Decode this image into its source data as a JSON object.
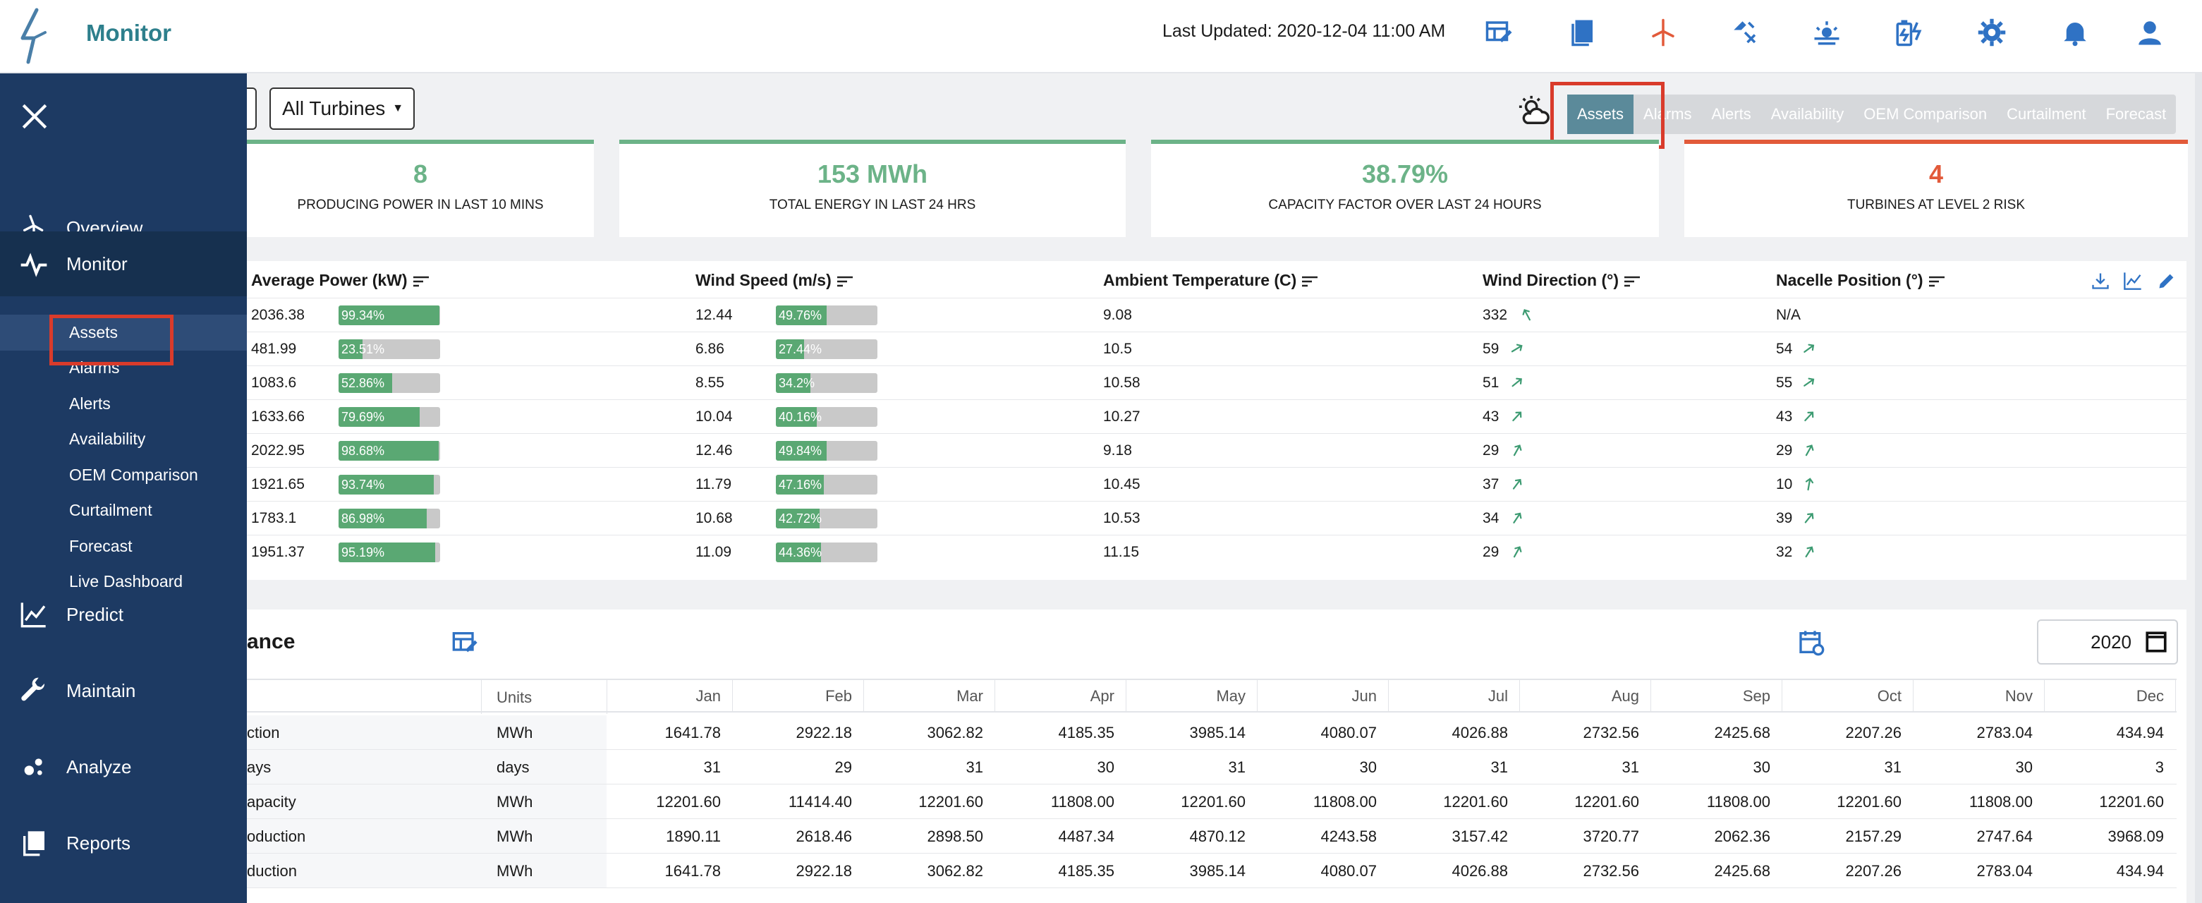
{
  "header": {
    "app_title": "Monitor",
    "last_updated": "Last Updated: 2020-12-04 11:00 AM",
    "icons": [
      "table-edit-icon",
      "book-icon",
      "wind-turbine-icon",
      "weather-warning-icon",
      "sun-haze-icon",
      "battery-charge-icon",
      "gear-icon",
      "bell-icon",
      "user-icon"
    ]
  },
  "sidebar": {
    "main": [
      {
        "label": "Overview",
        "icon": "turbine-outline-icon"
      },
      {
        "label": "Monitor",
        "icon": "pulse-icon"
      },
      {
        "label": "Predict",
        "icon": "line-chart-icon"
      },
      {
        "label": "Maintain",
        "icon": "wrench-icon"
      },
      {
        "label": "Analyze",
        "icon": "scatter-icon"
      },
      {
        "label": "Reports",
        "icon": "copy-icon"
      }
    ],
    "sub": [
      "Assets",
      "Alarms",
      "Alerts",
      "Availability",
      "OEM Comparison",
      "Curtailment",
      "Forecast",
      "Live Dashboard"
    ],
    "active_sub": "Assets"
  },
  "filters": {
    "turbines": "All Turbines"
  },
  "tabs": [
    "Assets",
    "Alarms",
    "Alerts",
    "Availability",
    "OEM Comparison",
    "Curtailment",
    "Forecast"
  ],
  "active_tab": "Assets",
  "kpis": [
    {
      "value": "8",
      "label": "PRODUCING POWER IN LAST 10 MINS",
      "color": "#6cb388"
    },
    {
      "value": "153 MWh",
      "label": "TOTAL ENERGY IN LAST 24 HRS",
      "color": "#6cb388"
    },
    {
      "value": "38.79%",
      "label": "CAPACITY FACTOR OVER LAST 24 HOURS",
      "color": "#6cb388"
    },
    {
      "value": "4",
      "label": "TURBINES AT LEVEL 2 RISK",
      "color": "#e25a3a"
    }
  ],
  "assets_table": {
    "headers": [
      "Average Power (kW)",
      "Wind Speed (m/s)",
      "Ambient Temperature (C)",
      "Wind Direction (°)",
      "Nacelle Position (°)"
    ],
    "rows": [
      {
        "power": "2036.38",
        "power_pct": "99.34%",
        "power_frac": 0.9934,
        "wind": "12.44",
        "wind_pct": "49.76%",
        "wind_frac": 0.4976,
        "temp": "9.08",
        "dir": "332",
        "nacelle": "N/A"
      },
      {
        "power": "481.99",
        "power_pct": "23.51%",
        "power_frac": 0.2351,
        "wind": "6.86",
        "wind_pct": "27.44%",
        "wind_frac": 0.2744,
        "temp": "10.5",
        "dir": "59",
        "nacelle": "54"
      },
      {
        "power": "1083.6",
        "power_pct": "52.86%",
        "power_frac": 0.5286,
        "wind": "8.55",
        "wind_pct": "34.2%",
        "wind_frac": 0.342,
        "temp": "10.58",
        "dir": "51",
        "nacelle": "55"
      },
      {
        "power": "1633.66",
        "power_pct": "79.69%",
        "power_frac": 0.7969,
        "wind": "10.04",
        "wind_pct": "40.16%",
        "wind_frac": 0.4016,
        "temp": "10.27",
        "dir": "43",
        "nacelle": "43"
      },
      {
        "power": "2022.95",
        "power_pct": "98.68%",
        "power_frac": 0.9868,
        "wind": "12.46",
        "wind_pct": "49.84%",
        "wind_frac": 0.4984,
        "temp": "9.18",
        "dir": "29",
        "nacelle": "29"
      },
      {
        "power": "1921.65",
        "power_pct": "93.74%",
        "power_frac": 0.9374,
        "wind": "11.79",
        "wind_pct": "47.16%",
        "wind_frac": 0.4716,
        "temp": "10.45",
        "dir": "37",
        "nacelle": "10"
      },
      {
        "power": "1783.1",
        "power_pct": "86.98%",
        "power_frac": 0.8698,
        "wind": "10.68",
        "wind_pct": "42.72%",
        "wind_frac": 0.4272,
        "temp": "10.53",
        "dir": "34",
        "nacelle": "39"
      },
      {
        "power": "1951.37",
        "power_pct": "95.19%",
        "power_frac": 0.9519,
        "wind": "11.09",
        "wind_pct": "44.36%",
        "wind_frac": 0.4436,
        "temp": "11.15",
        "dir": "29",
        "nacelle": "32"
      }
    ]
  },
  "performance": {
    "title": "ance",
    "year": "2020",
    "headers": [
      "Units",
      "Jan",
      "Feb",
      "Mar",
      "Apr",
      "May",
      "Jun",
      "Jul",
      "Aug",
      "Sep",
      "Oct",
      "Nov",
      "Dec"
    ],
    "rows": [
      {
        "name": "ction",
        "units": "MWh",
        "values": [
          "1641.78",
          "2922.18",
          "3062.82",
          "4185.35",
          "3985.14",
          "4080.07",
          "4026.88",
          "2732.56",
          "2425.68",
          "2207.26",
          "2783.04",
          "434.94"
        ]
      },
      {
        "name": "ays",
        "units": "days",
        "values": [
          "31",
          "29",
          "31",
          "30",
          "31",
          "30",
          "31",
          "31",
          "30",
          "31",
          "30",
          "3"
        ]
      },
      {
        "name": "apacity",
        "units": "MWh",
        "values": [
          "12201.60",
          "11414.40",
          "12201.60",
          "11808.00",
          "12201.60",
          "11808.00",
          "12201.60",
          "12201.60",
          "11808.00",
          "12201.60",
          "11808.00",
          "12201.60"
        ]
      },
      {
        "name": "oduction",
        "units": "MWh",
        "values": [
          "1890.11",
          "2618.46",
          "2898.50",
          "4487.34",
          "4870.12",
          "4243.58",
          "3157.42",
          "3720.77",
          "2062.36",
          "2157.29",
          "2747.64",
          "3968.09"
        ]
      },
      {
        "name": "duction",
        "units": "MWh",
        "values": [
          "1641.78",
          "2922.18",
          "3062.82",
          "4185.35",
          "3985.14",
          "4080.07",
          "4026.88",
          "2732.56",
          "2425.68",
          "2207.26",
          "2783.04",
          "434.94"
        ]
      }
    ]
  },
  "colors": {
    "sidebar_bg": "#1d3a63",
    "accent_teal": "#2d7f8c",
    "icon_blue": "#2f72c4",
    "good_green": "#6cb388",
    "risk_red": "#e25a3a",
    "highlight_red": "#d93b2b"
  }
}
